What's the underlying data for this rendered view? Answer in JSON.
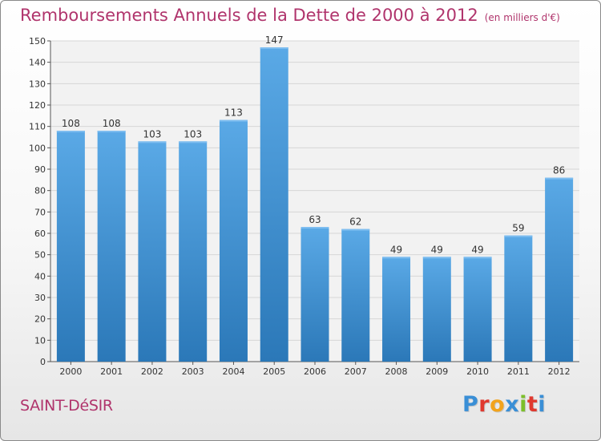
{
  "header": {
    "title": "Remboursements Annuels de la Dette de 2000 à 2012",
    "unit": "(en milliers d'€)"
  },
  "footer": {
    "commune": "SAINT-DéSIR",
    "logo_letters": [
      "P",
      "r",
      "o",
      "x",
      "i",
      "t",
      "i"
    ],
    "logo_colors": [
      "#3a8fd6",
      "#e0392f",
      "#f2a31c",
      "#3a8fd6",
      "#7cbf2a",
      "#e0392f",
      "#3a8fd6"
    ]
  },
  "chart_data": {
    "type": "bar",
    "title": "Remboursements Annuels de la Dette de 2000 à 2012",
    "unit": "(en milliers d'€)",
    "categories": [
      "2000",
      "2001",
      "2002",
      "2003",
      "2004",
      "2005",
      "2006",
      "2007",
      "2008",
      "2009",
      "2010",
      "2011",
      "2012"
    ],
    "values": [
      108,
      108,
      103,
      103,
      113,
      147,
      63,
      62,
      49,
      49,
      49,
      59,
      86
    ],
    "ylim": [
      0,
      150
    ],
    "yticks": [
      0,
      10,
      20,
      30,
      40,
      50,
      60,
      70,
      80,
      90,
      100,
      110,
      120,
      130,
      140,
      150
    ],
    "grid": true,
    "bar_color": "#4f9fdc",
    "bar_color_dark": "#2f7fc0"
  }
}
